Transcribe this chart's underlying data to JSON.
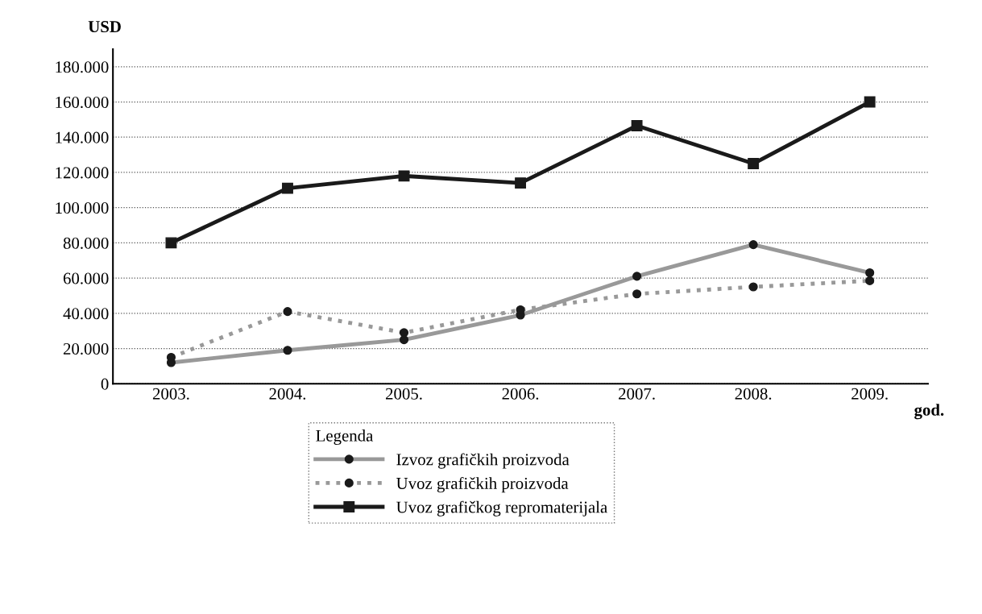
{
  "chart_data": {
    "type": "line",
    "xlabel": "god.",
    "ylabel": "USD",
    "legend_title": "Legenda",
    "categories": [
      "2003.",
      "2004.",
      "2005.",
      "2006.",
      "2007.",
      "2008.",
      "2009."
    ],
    "series": [
      {
        "name": "Izvoz grafičkih proizvoda",
        "color": "#999999",
        "marker": "circle",
        "line_style": "solid",
        "values": [
          12000,
          19000,
          25000,
          39000,
          61000,
          79000,
          63000
        ]
      },
      {
        "name": "Uvoz grafičkih proizvoda",
        "color": "#999999",
        "marker": "circle",
        "line_style": "dotted",
        "values": [
          15000,
          41000,
          29000,
          42000,
          51000,
          55000,
          58500
        ]
      },
      {
        "name": "Uvoz grafičkog repromaterijala",
        "color": "#1a1a1a",
        "marker": "square",
        "line_style": "solid",
        "values": [
          80000,
          111000,
          118000,
          114000,
          146500,
          125000,
          160000
        ]
      }
    ],
    "ylim": [
      0,
      190000
    ],
    "yticks": [
      0,
      {
        "value": 20000,
        "label": "20.000"
      },
      {
        "value": 40000,
        "label": "40.000"
      },
      {
        "value": 60000,
        "label": "60.000"
      },
      {
        "value": 80000,
        "label": "80.000"
      },
      {
        "value": 100000,
        "label": "100.000"
      },
      {
        "value": 120000,
        "label": "120.000"
      },
      {
        "value": 140000,
        "label": "140.000"
      },
      {
        "value": 160000,
        "label": "160.000"
      },
      {
        "value": 180000,
        "label": "180.000"
      }
    ],
    "grid": "y",
    "legend": "bottom"
  }
}
